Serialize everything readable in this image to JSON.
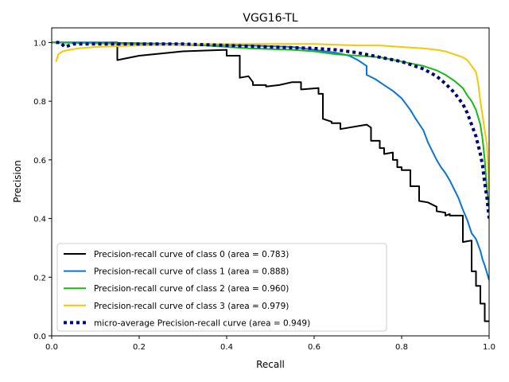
{
  "chart_data": {
    "type": "line",
    "title": "VGG16-TL",
    "xlabel": "Recall",
    "ylabel": "Precision",
    "xlim": [
      0.0,
      1.0
    ],
    "ylim": [
      0.0,
      1.05
    ],
    "xticks": [
      "0.0",
      "0.2",
      "0.4",
      "0.6",
      "0.8",
      "1.0"
    ],
    "yticks": [
      "0.0",
      "0.2",
      "0.4",
      "0.6",
      "0.8",
      "1.0"
    ],
    "grid": false,
    "legend_position": "lower-left",
    "series": [
      {
        "name": "Precision-recall curve of class 0 (area = 0.783)",
        "color": "#000000",
        "style": "solid",
        "x": [
          0.0,
          0.15,
          0.15,
          0.2,
          0.3,
          0.4,
          0.4,
          0.43,
          0.43,
          0.45,
          0.46,
          0.46,
          0.49,
          0.49,
          0.52,
          0.55,
          0.57,
          0.57,
          0.61,
          0.61,
          0.62,
          0.62,
          0.64,
          0.64,
          0.66,
          0.66,
          0.68,
          0.72,
          0.73,
          0.73,
          0.75,
          0.75,
          0.76,
          0.76,
          0.78,
          0.78,
          0.79,
          0.79,
          0.8,
          0.8,
          0.82,
          0.82,
          0.84,
          0.84,
          0.86,
          0.88,
          0.88,
          0.9,
          0.9,
          0.91,
          0.91,
          0.94,
          0.94,
          0.96,
          0.96,
          0.97,
          0.97,
          0.98,
          0.98,
          0.99,
          0.99,
          1.0
        ],
        "y": [
          1.0,
          1.0,
          0.94,
          0.955,
          0.97,
          0.975,
          0.955,
          0.955,
          0.88,
          0.885,
          0.865,
          0.855,
          0.855,
          0.85,
          0.855,
          0.865,
          0.865,
          0.84,
          0.845,
          0.825,
          0.825,
          0.74,
          0.73,
          0.725,
          0.725,
          0.705,
          0.71,
          0.72,
          0.71,
          0.665,
          0.665,
          0.64,
          0.64,
          0.62,
          0.625,
          0.6,
          0.6,
          0.575,
          0.575,
          0.565,
          0.565,
          0.51,
          0.51,
          0.46,
          0.455,
          0.44,
          0.425,
          0.42,
          0.41,
          0.415,
          0.41,
          0.41,
          0.32,
          0.325,
          0.22,
          0.22,
          0.17,
          0.17,
          0.11,
          0.11,
          0.05,
          0.05
        ]
      },
      {
        "name": "Precision-recall curve of class 1 (area = 0.888)",
        "color": "#0a74d6",
        "style": "solid",
        "x": [
          0.0,
          0.1,
          0.3,
          0.45,
          0.55,
          0.6,
          0.65,
          0.68,
          0.7,
          0.71,
          0.72,
          0.72,
          0.74,
          0.76,
          0.78,
          0.8,
          0.82,
          0.83,
          0.85,
          0.86,
          0.87,
          0.88,
          0.89,
          0.9,
          0.91,
          0.92,
          0.93,
          0.94,
          0.95,
          0.96,
          0.97,
          0.98,
          0.985,
          0.99,
          1.0
        ],
        "y": [
          1.0,
          1.0,
          0.995,
          0.99,
          0.985,
          0.975,
          0.965,
          0.955,
          0.94,
          0.93,
          0.92,
          0.89,
          0.875,
          0.855,
          0.835,
          0.81,
          0.77,
          0.745,
          0.7,
          0.66,
          0.63,
          0.6,
          0.575,
          0.555,
          0.53,
          0.5,
          0.47,
          0.43,
          0.395,
          0.35,
          0.33,
          0.29,
          0.26,
          0.24,
          0.19
        ]
      },
      {
        "name": "Precision-recall curve of class 2 (area = 0.960)",
        "color": "#1ab81a",
        "style": "solid",
        "x": [
          0.0,
          0.2,
          0.35,
          0.45,
          0.55,
          0.6,
          0.65,
          0.7,
          0.75,
          0.8,
          0.85,
          0.88,
          0.9,
          0.92,
          0.94,
          0.95,
          0.96,
          0.97,
          0.98,
          0.985,
          0.99,
          0.995,
          1.0
        ],
        "y": [
          1.0,
          0.995,
          0.99,
          0.98,
          0.975,
          0.97,
          0.96,
          0.955,
          0.95,
          0.935,
          0.92,
          0.905,
          0.89,
          0.87,
          0.845,
          0.82,
          0.8,
          0.77,
          0.72,
          0.67,
          0.6,
          0.5,
          0.43
        ]
      },
      {
        "name": "Precision-recall curve of class 3 (area = 0.979)",
        "color": "#f7c707",
        "style": "solid",
        "x": [
          0.01,
          0.015,
          0.025,
          0.04,
          0.06,
          0.1,
          0.2,
          0.35,
          0.5,
          0.6,
          0.7,
          0.75,
          0.8,
          0.85,
          0.88,
          0.9,
          0.92,
          0.94,
          0.95,
          0.96,
          0.97,
          0.975,
          0.98,
          0.985,
          0.99,
          0.995,
          1.0
        ],
        "y": [
          0.935,
          0.96,
          0.97,
          0.975,
          0.98,
          0.985,
          0.99,
          0.995,
          0.995,
          0.995,
          0.99,
          0.99,
          0.985,
          0.98,
          0.975,
          0.97,
          0.96,
          0.95,
          0.94,
          0.92,
          0.9,
          0.86,
          0.8,
          0.75,
          0.7,
          0.65,
          0.5
        ]
      },
      {
        "name": "micro-average Precision-recall curve (area = 0.949)",
        "color": "#000080",
        "style": "dotted",
        "x": [
          0.01,
          0.02,
          0.03,
          0.05,
          0.1,
          0.2,
          0.3,
          0.4,
          0.5,
          0.6,
          0.65,
          0.7,
          0.75,
          0.8,
          0.85,
          0.88,
          0.9,
          0.92,
          0.94,
          0.95,
          0.96,
          0.97,
          0.98,
          0.985,
          0.99,
          0.995,
          1.0
        ],
        "y": [
          1.0,
          1.0,
          0.985,
          0.995,
          0.995,
          0.995,
          0.995,
          0.99,
          0.985,
          0.98,
          0.975,
          0.965,
          0.95,
          0.935,
          0.91,
          0.885,
          0.86,
          0.83,
          0.79,
          0.76,
          0.72,
          0.68,
          0.62,
          0.58,
          0.52,
          0.47,
          0.4
        ]
      }
    ]
  }
}
